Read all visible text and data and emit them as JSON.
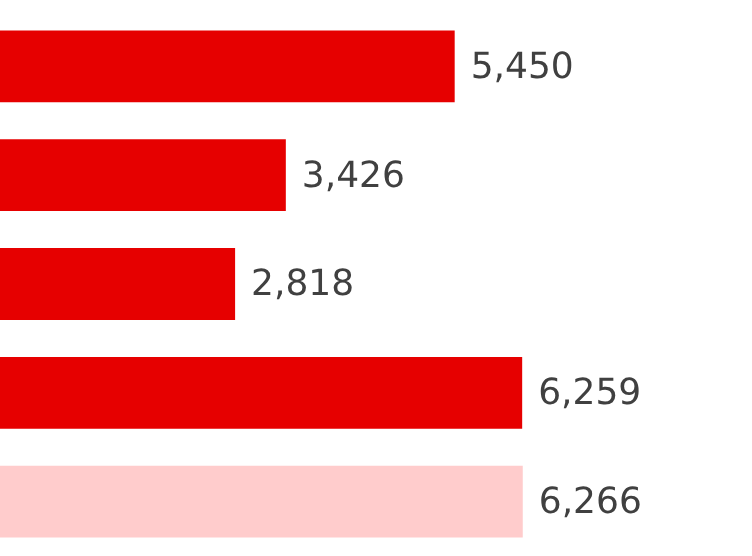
{
  "chart_data": {
    "type": "bar",
    "orientation": "horizontal",
    "categories": [
      null,
      null,
      null,
      null,
      null
    ],
    "values": [
      5450,
      3426,
      2818,
      6259,
      6266
    ],
    "colors": [
      "#e60000",
      "#e60000",
      "#e60000",
      "#e60000",
      "#ffcccc"
    ],
    "value_labels": [
      "5,450",
      "3,426",
      "2,818",
      "6,259",
      "6,266"
    ]
  }
}
